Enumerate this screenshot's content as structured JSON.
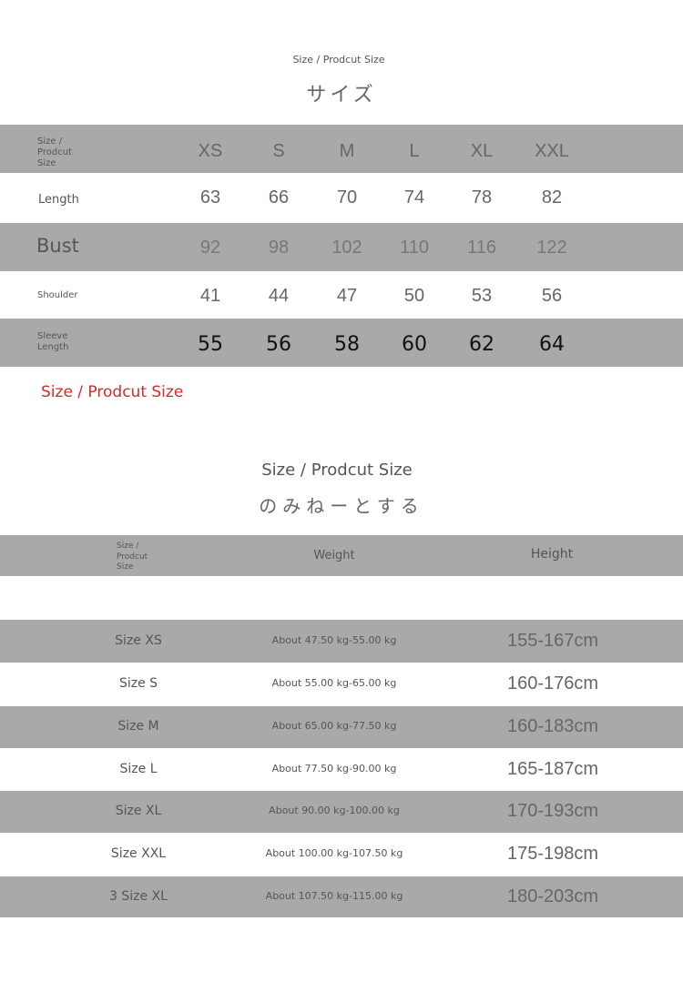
{
  "section1": {
    "subtitle": "Size / Prodcut Size",
    "title": "サイズ",
    "header_label": [
      "Size /",
      "Prodcut",
      "Size"
    ],
    "sizes": [
      "XS",
      "S",
      "M",
      "L",
      "XL",
      "XXL"
    ],
    "rows": [
      {
        "label": "Length",
        "values": [
          "63",
          "66",
          "70",
          "74",
          "78",
          "82"
        ]
      },
      {
        "label": "Bust",
        "values": [
          "92",
          "98",
          "102",
          "110",
          "116",
          "122"
        ]
      },
      {
        "label": "Shoulder",
        "values": [
          "41",
          "44",
          "47",
          "50",
          "53",
          "56"
        ]
      },
      {
        "label": "Sleeve Length",
        "label_lines": [
          "Sleeve",
          "Length"
        ],
        "values": [
          "55",
          "56",
          "58",
          "60",
          "62",
          "64"
        ]
      }
    ],
    "footer_note": "Size / Prodcut Size",
    "footer_note_color": "#d42a2a"
  },
  "section2": {
    "subtitle": "Size / Prodcut Size",
    "title": "のみねーとする",
    "header_label": [
      "Size /",
      "Prodcut",
      "Size"
    ],
    "col_weight": "Weight",
    "col_height": "Height",
    "rows": [
      {
        "size": "Size XS",
        "weight": "About 47.50 kg-55.00 kg",
        "height": "155-167cm"
      },
      {
        "size": "Size S",
        "weight": "About 55.00 kg-65.00 kg",
        "height": "160-176cm"
      },
      {
        "size": "Size M",
        "weight": "About 65.00 kg-77.50 kg",
        "height": "160-183cm"
      },
      {
        "size": "Size L",
        "weight": "About 77.50 kg-90.00 kg",
        "height": "165-187cm"
      },
      {
        "size": "Size XL",
        "weight": "About 90.00 kg-100.00 kg",
        "height": "170-193cm"
      },
      {
        "size": "Size XXL",
        "weight": "About 100.00 kg-107.50 kg",
        "height": "175-198cm"
      },
      {
        "size": "3 Size XL",
        "weight": "About 107.50 kg-115.00 kg",
        "height": "180-203cm"
      }
    ]
  },
  "colors": {
    "band": "#a9a9a9"
  }
}
